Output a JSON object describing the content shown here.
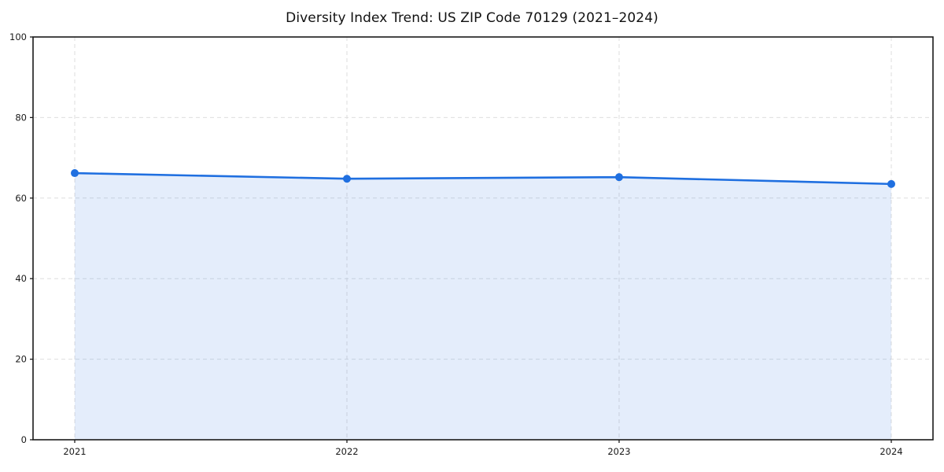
{
  "page": {
    "background": "#ffffff"
  },
  "chart_data": {
    "type": "area",
    "title": "Diversity Index Trend: US ZIP Code 70129 (2021–2024)",
    "categories": [
      "2021",
      "2022",
      "2023",
      "2024"
    ],
    "series": [
      {
        "name": "Diversity Index",
        "values": [
          66.2,
          64.8,
          65.2,
          63.5
        ]
      }
    ],
    "xlabel": "",
    "ylabel": "",
    "ylim": [
      0,
      100
    ],
    "yticks": [
      0,
      20,
      40,
      60,
      80,
      100
    ],
    "grid": true,
    "grid_style": "dashed",
    "legend_position": "none",
    "colors": {
      "line": "#1f6fe0",
      "marker": "#1f6fe0",
      "fill": "rgba(31, 111, 224, 0.12)",
      "gridline": "#dedede",
      "spine": "#1a1a1a",
      "tick_label": "#1a1a1a",
      "title": "#111111",
      "background": "#ffffff"
    },
    "marker_shape": "circle"
  }
}
